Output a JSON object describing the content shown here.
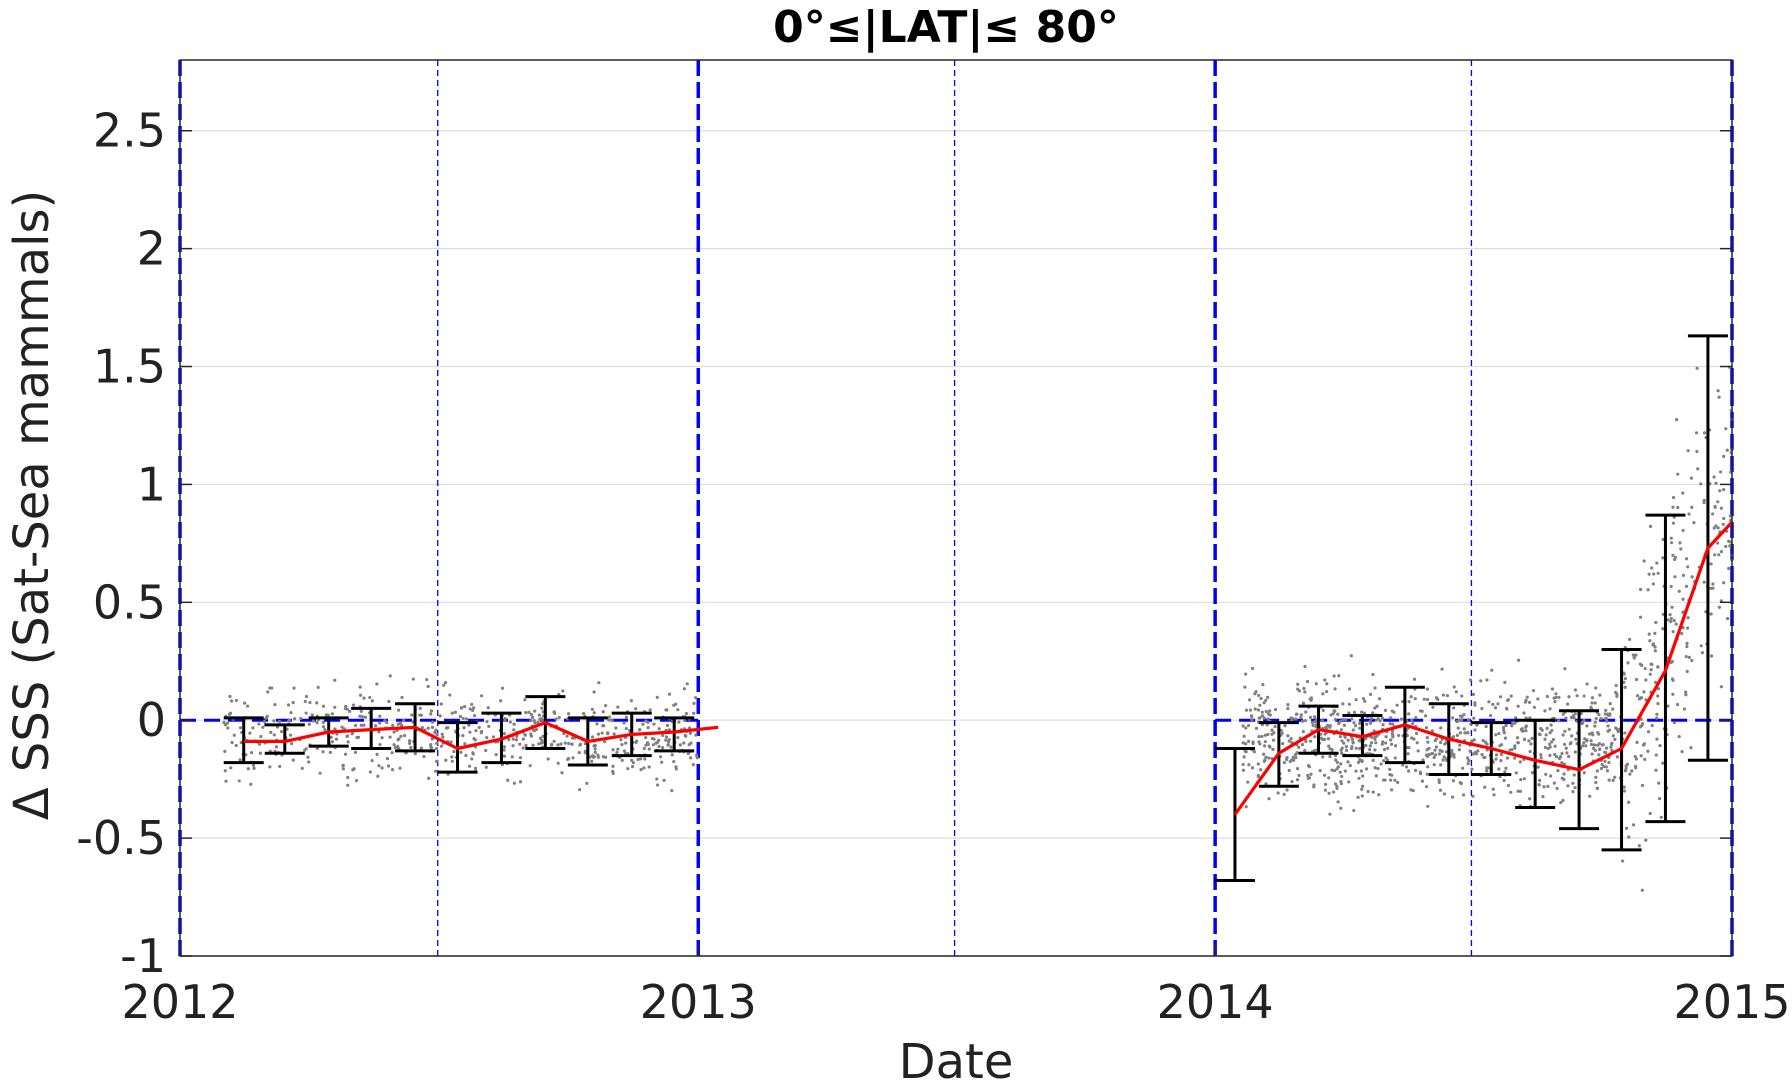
{
  "chart_data": {
    "type": "scatter",
    "title": "0°≤|LAT|≤ 80°",
    "xlabel": "Date",
    "ylabel": "Δ SSS (Sat-Sea mammals)",
    "xlim": [
      "2012-01-01",
      "2015-01-01"
    ],
    "ylim": [
      -1,
      2.8
    ],
    "x_ticks": [
      "2012",
      "2013",
      "2014",
      "2015"
    ],
    "y_ticks": [
      "-1",
      "-0.5",
      "0",
      "0.5",
      "1",
      "1.5",
      "2",
      "2.5"
    ],
    "grid": "horizontal",
    "year_boundaries": [
      "2012-01-01",
      "2013-01-01",
      "2014-01-01",
      "2015-01-01"
    ],
    "mid_year_lines": [
      "2012-07-01",
      "2013-07-01",
      "2014-07-01"
    ],
    "zero_reference_segments": [
      [
        "2012-01-01",
        "2013-01-01"
      ],
      [
        "2014-01-01",
        "2015-01-01"
      ]
    ],
    "series": [
      {
        "type": "line",
        "color": "#ff0000",
        "x": [
          "2012-02-15",
          "2012-03-15",
          "2012-04-15",
          "2012-05-15",
          "2012-06-15",
          "2012-07-15",
          "2012-08-15",
          "2012-09-15",
          "2012-10-15",
          "2012-11-15",
          "2012-12-15",
          "2013-01-15"
        ],
        "y": [
          -0.09,
          -0.09,
          -0.05,
          -0.04,
          -0.03,
          -0.12,
          -0.08,
          -0.01,
          -0.09,
          -0.06,
          -0.05,
          -0.03
        ]
      },
      {
        "type": "line",
        "color": "#ff0000",
        "x": [
          "2014-01-15",
          "2014-02-15",
          "2014-03-15",
          "2014-04-15",
          "2014-05-15",
          "2014-06-15",
          "2014-07-15",
          "2014-08-15",
          "2014-09-15",
          "2014-10-15",
          "2014-11-15",
          "2014-12-15",
          "2015-01-01"
        ],
        "y": [
          -0.4,
          -0.14,
          -0.04,
          -0.07,
          -0.02,
          -0.08,
          -0.12,
          -0.17,
          -0.21,
          -0.12,
          0.21,
          0.73,
          0.84
        ]
      },
      {
        "type": "errorbar",
        "color": "#000000",
        "x": [
          "2012-02-15",
          "2012-03-15",
          "2012-04-15",
          "2012-05-15",
          "2012-06-15",
          "2012-07-15",
          "2012-08-15",
          "2012-09-15",
          "2012-10-15",
          "2012-11-15",
          "2012-12-15"
        ],
        "low": [
          -0.18,
          -0.14,
          -0.11,
          -0.12,
          -0.13,
          -0.22,
          -0.18,
          -0.12,
          -0.19,
          -0.15,
          -0.13
        ],
        "high": [
          0.01,
          -0.02,
          0.01,
          0.05,
          0.07,
          -0.01,
          0.03,
          0.1,
          0.01,
          0.03,
          0.01
        ]
      },
      {
        "type": "errorbar",
        "color": "#000000",
        "x": [
          "2014-01-15",
          "2014-02-15",
          "2014-03-15",
          "2014-04-15",
          "2014-05-15",
          "2014-06-15",
          "2014-07-15",
          "2014-08-15",
          "2014-09-15",
          "2014-10-15",
          "2014-11-15",
          "2014-12-15"
        ],
        "low": [
          -0.68,
          -0.28,
          -0.14,
          -0.15,
          -0.18,
          -0.23,
          -0.23,
          -0.37,
          -0.46,
          -0.55,
          -0.43,
          -0.17
        ],
        "high": [
          -0.12,
          -0.01,
          0.06,
          0.02,
          0.14,
          0.07,
          -0.01,
          0.0,
          0.04,
          0.3,
          0.87,
          1.63
        ]
      },
      {
        "type": "scatter",
        "color": "#808080",
        "segments": [
          {
            "x_range": [
              "2012-02-01",
              "2013-01-01"
            ],
            "y_center": -0.06,
            "y_spread": 0.17,
            "count": 620
          },
          {
            "x_range": [
              "2014-01-20",
              "2014-10-15"
            ],
            "y_center": -0.08,
            "y_spread": 0.22,
            "count": 900
          },
          {
            "x_range": [
              "2014-10-15",
              "2015-01-01"
            ],
            "y_center_start": -0.15,
            "y_center_end": 1.0,
            "y_spread": 0.55,
            "count": 260
          }
        ]
      }
    ]
  }
}
